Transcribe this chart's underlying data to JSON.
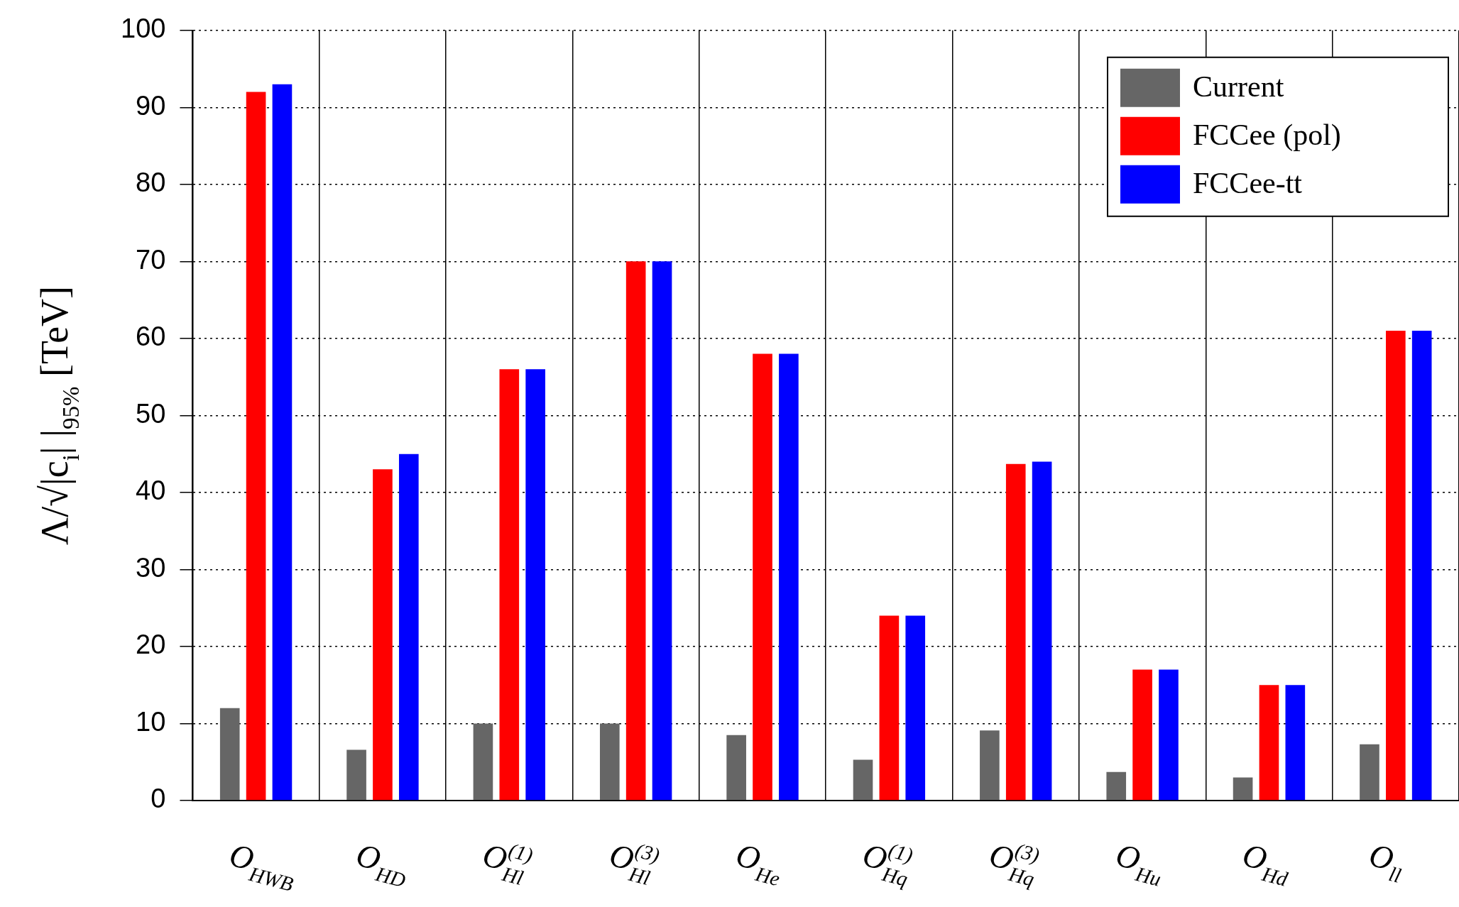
{
  "chart_data": {
    "type": "bar",
    "ylabel": "Λ/√|c$_{i}$| |$_{95%}$ [TeV]",
    "categories": [
      "O$_{HWB}$",
      "O$_{HD}$",
      "O$_{Hl}$$^{(1)}$",
      "O$_{Hl}$$^{(3)}$",
      "O$_{He}$",
      "O$_{Hq}$$^{(1)}$",
      "O$_{Hq}$$^{(3)}$",
      "O$_{Hu}$",
      "O$_{Hd}$",
      "O$_{ll}$"
    ],
    "series": [
      {
        "name": "Current",
        "color": "#666666",
        "values": [
          12,
          6.6,
          10,
          10,
          8.5,
          5.3,
          9.1,
          3.7,
          3,
          7.3
        ]
      },
      {
        "name": "FCCee (pol)",
        "color": "#ff0000",
        "values": [
          92,
          43,
          56,
          70,
          58,
          24,
          43.7,
          17,
          15,
          61
        ]
      },
      {
        "name": "FCCee-tt",
        "color": "#0000ff",
        "values": [
          93,
          45,
          56,
          70,
          58,
          24,
          44,
          17,
          15,
          61
        ]
      }
    ],
    "ylim": [
      0,
      100
    ],
    "yticks": [
      0,
      10,
      20,
      30,
      40,
      50,
      60,
      70,
      80,
      90,
      100
    ],
    "grid": true,
    "legend": "top right"
  }
}
